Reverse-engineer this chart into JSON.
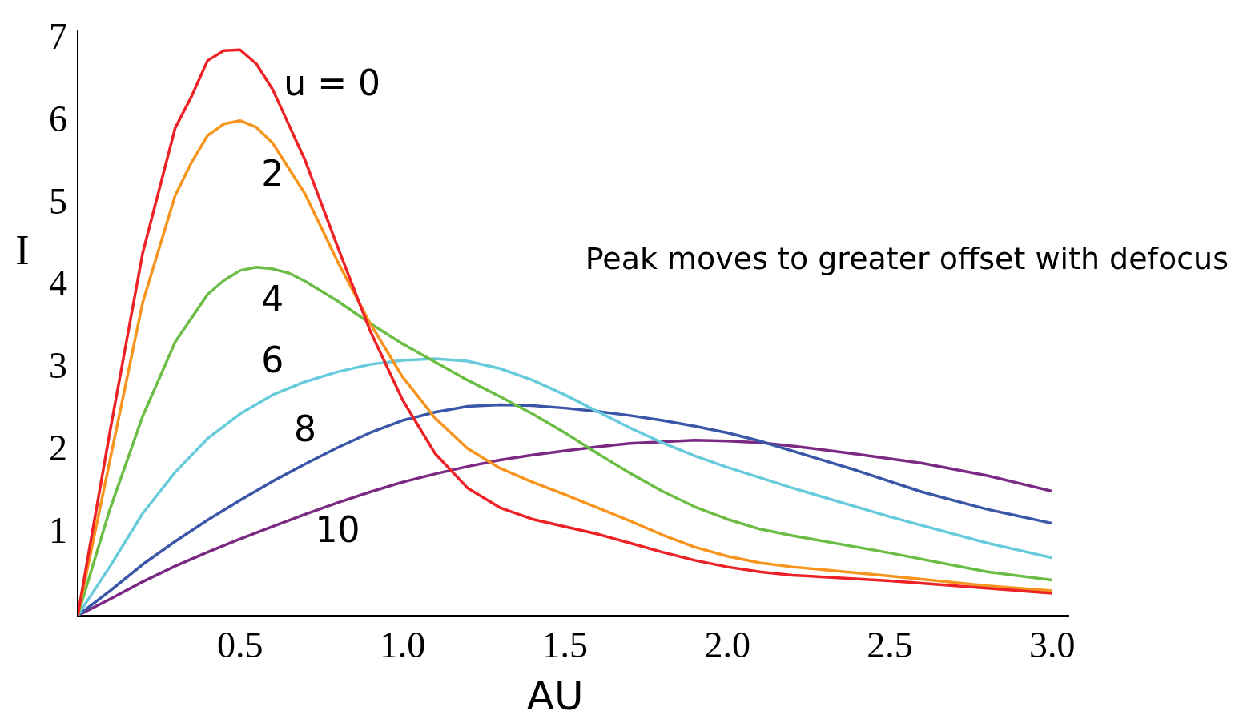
{
  "chart_data": {
    "type": "line",
    "xlabel": "AU",
    "ylabel": "I",
    "annotations": [
      "Peak moves to greater offset with defocus"
    ],
    "xlim": [
      0,
      3.05
    ],
    "ylim": [
      0,
      7.1
    ],
    "xticks": [
      0.5,
      {
        "value": 1,
        "label": "1.0"
      },
      1.5,
      {
        "value": 2,
        "label": "2.0"
      },
      2.5,
      {
        "value": 3,
        "label": "3.0"
      }
    ],
    "yticks": [
      1,
      2,
      3,
      4,
      5,
      6,
      7
    ],
    "grid": false,
    "legend": false,
    "marker": "none",
    "line_style": "solid",
    "series": [
      {
        "name": "u = 0",
        "color": "#ec2227",
        "x": [
          0,
          0.1,
          0.2,
          0.3,
          0.35,
          0.4,
          0.45,
          0.5,
          0.55,
          0.6,
          0.7,
          0.8,
          0.9,
          1.0,
          1.1,
          1.2,
          1.3,
          1.4,
          1.5,
          1.6,
          1.7,
          1.8,
          1.9,
          2.0,
          2.1,
          2.2,
          2.5,
          2.8,
          3.0
        ],
        "values": [
          0,
          2.25,
          4.4,
          5.92,
          6.3,
          6.74,
          6.86,
          6.87,
          6.7,
          6.39,
          5.53,
          4.48,
          3.46,
          2.62,
          1.97,
          1.55,
          1.31,
          1.17,
          1.08,
          0.99,
          0.88,
          0.77,
          0.67,
          0.59,
          0.53,
          0.49,
          0.42,
          0.33,
          0.27
        ]
      },
      {
        "name": "2",
        "color": "#f7941d",
        "x": [
          0,
          0.1,
          0.2,
          0.3,
          0.35,
          0.4,
          0.45,
          0.5,
          0.55,
          0.6,
          0.7,
          0.8,
          0.9,
          1.0,
          1.1,
          1.2,
          1.3,
          1.4,
          1.5,
          1.6,
          1.7,
          1.8,
          1.9,
          2.0,
          2.1,
          2.2,
          2.5,
          2.8,
          3.0
        ],
        "values": [
          0,
          1.9,
          3.8,
          5.1,
          5.5,
          5.83,
          5.97,
          6.01,
          5.93,
          5.74,
          5.12,
          4.3,
          3.55,
          2.9,
          2.4,
          2.03,
          1.79,
          1.62,
          1.47,
          1.31,
          1.15,
          0.98,
          0.83,
          0.72,
          0.64,
          0.59,
          0.48,
          0.36,
          0.3
        ]
      },
      {
        "name": "4",
        "color": "#6bbd45",
        "x": [
          0,
          0.1,
          0.2,
          0.3,
          0.4,
          0.45,
          0.5,
          0.55,
          0.6,
          0.65,
          0.7,
          0.8,
          0.9,
          1.0,
          1.1,
          1.2,
          1.3,
          1.4,
          1.5,
          1.6,
          1.7,
          1.8,
          1.9,
          2.0,
          2.1,
          2.2,
          2.5,
          2.8,
          3.0
        ],
        "values": [
          0,
          1.3,
          2.42,
          3.32,
          3.9,
          4.07,
          4.19,
          4.23,
          4.21,
          4.16,
          4.06,
          3.82,
          3.55,
          3.3,
          3.08,
          2.86,
          2.66,
          2.45,
          2.22,
          1.97,
          1.73,
          1.51,
          1.32,
          1.17,
          1.05,
          0.97,
          0.76,
          0.53,
          0.43
        ]
      },
      {
        "name": "6",
        "color": "#67cbdb",
        "x": [
          0,
          0.1,
          0.2,
          0.3,
          0.4,
          0.5,
          0.6,
          0.7,
          0.8,
          0.9,
          1.0,
          1.1,
          1.2,
          1.3,
          1.4,
          1.5,
          1.6,
          1.7,
          1.8,
          1.9,
          2.0,
          2.2,
          2.5,
          2.8,
          3.0
        ],
        "values": [
          0,
          0.6,
          1.24,
          1.74,
          2.15,
          2.45,
          2.68,
          2.84,
          2.96,
          3.05,
          3.1,
          3.12,
          3.09,
          3.0,
          2.86,
          2.68,
          2.48,
          2.28,
          2.1,
          1.94,
          1.8,
          1.55,
          1.2,
          0.88,
          0.7
        ]
      },
      {
        "name": "8",
        "color": "#3a57a7",
        "x": [
          0,
          0.1,
          0.2,
          0.3,
          0.4,
          0.5,
          0.6,
          0.7,
          0.8,
          0.9,
          1.0,
          1.1,
          1.2,
          1.3,
          1.4,
          1.5,
          1.6,
          1.7,
          1.8,
          1.9,
          2.0,
          2.1,
          2.2,
          2.4,
          2.6,
          2.8,
          3.0
        ],
        "values": [
          0,
          0.3,
          0.62,
          0.9,
          1.16,
          1.4,
          1.63,
          1.84,
          2.04,
          2.22,
          2.37,
          2.47,
          2.54,
          2.56,
          2.55,
          2.52,
          2.48,
          2.43,
          2.37,
          2.3,
          2.22,
          2.12,
          2.0,
          1.76,
          1.5,
          1.29,
          1.12
        ]
      },
      {
        "name": "10",
        "color": "#7b2a83",
        "x": [
          0,
          0.1,
          0.2,
          0.3,
          0.4,
          0.5,
          0.6,
          0.7,
          0.8,
          0.9,
          1.0,
          1.1,
          1.2,
          1.3,
          1.4,
          1.5,
          1.6,
          1.7,
          1.8,
          1.9,
          2.0,
          2.1,
          2.2,
          2.4,
          2.6,
          2.8,
          3.0
        ],
        "values": [
          0,
          0.2,
          0.41,
          0.6,
          0.77,
          0.93,
          1.08,
          1.23,
          1.37,
          1.5,
          1.62,
          1.72,
          1.81,
          1.89,
          1.95,
          2.0,
          2.05,
          2.09,
          2.11,
          2.13,
          2.12,
          2.1,
          2.06,
          1.96,
          1.85,
          1.7,
          1.51
        ]
      }
    ]
  }
}
